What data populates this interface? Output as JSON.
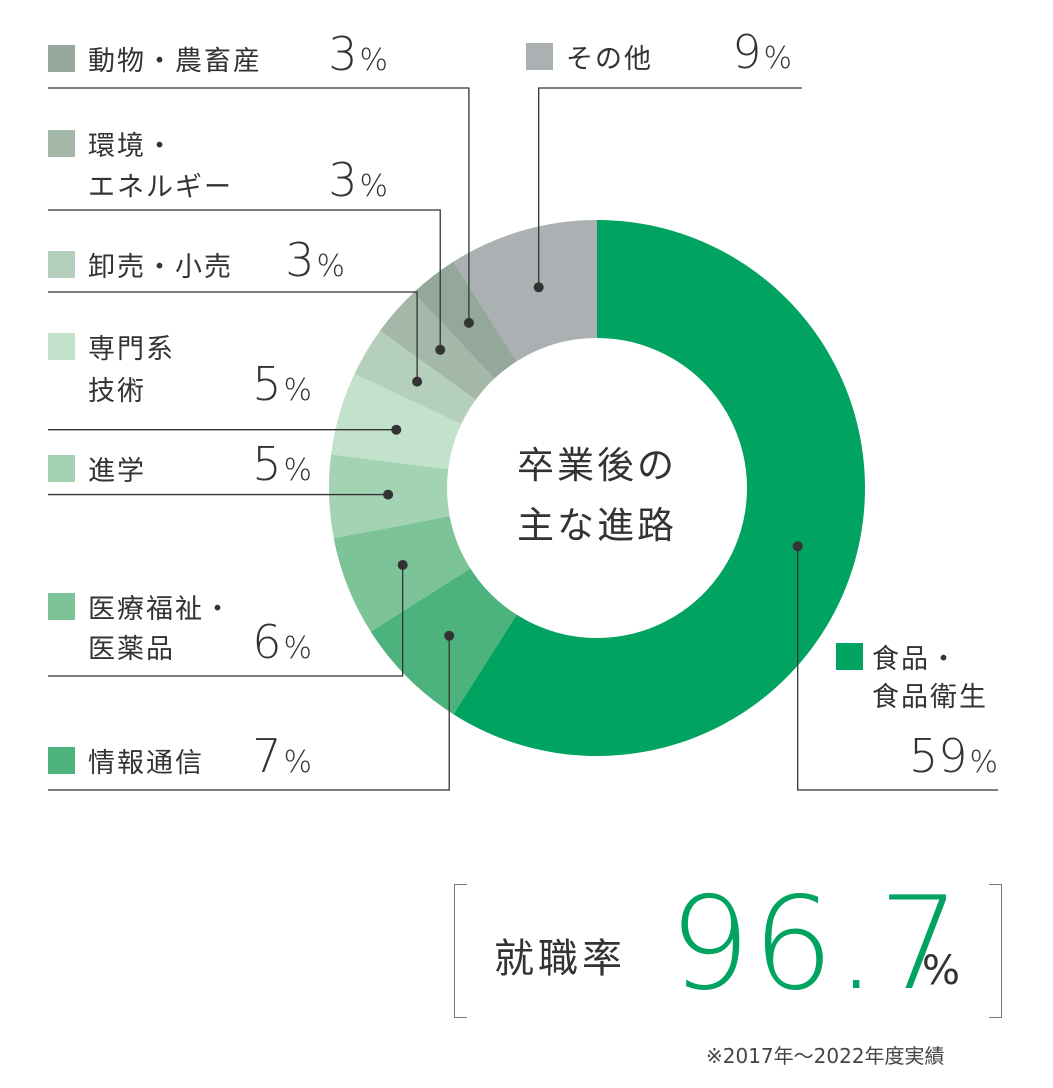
{
  "chart_data": {
    "type": "pie",
    "title": "卒業後の主な進路",
    "title_lines": [
      "卒業後の",
      "主な進路"
    ],
    "unit": "%",
    "slices": [
      {
        "name": "食品・食品衛生",
        "label_lines": [
          "食品・",
          "食品衛生"
        ],
        "value": 59,
        "color": "#00a35f"
      },
      {
        "name": "情報通信",
        "label_lines": [
          "情報通信"
        ],
        "value": 7,
        "color": "#4db37c"
      },
      {
        "name": "医療福祉・医薬品",
        "label_lines": [
          "医療福祉・",
          "医薬品"
        ],
        "value": 6,
        "color": "#7cc497"
      },
      {
        "name": "進学",
        "label_lines": [
          "進学"
        ],
        "value": 5,
        "color": "#a3d3b2"
      },
      {
        "name": "専門系技術",
        "label_lines": [
          "専門系",
          "技術"
        ],
        "value": 5,
        "color": "#c2e2cc"
      },
      {
        "name": "卸売・小売",
        "label_lines": [
          "卸売・小売"
        ],
        "value": 3,
        "color": "#b4cfbb"
      },
      {
        "name": "環境・エネルギー",
        "label_lines": [
          "環境・",
          "エネルギー"
        ],
        "value": 3,
        "color": "#a3b8a8"
      },
      {
        "name": "動物・農畜産",
        "label_lines": [
          "動物・農畜産"
        ],
        "value": 3,
        "color": "#94a79b"
      },
      {
        "name": "その他",
        "label_lines": [
          "その他"
        ],
        "value": 9,
        "color": "#abb0b2"
      }
    ]
  },
  "employment": {
    "label": "就職率",
    "value": "96.7",
    "unit": "%"
  },
  "note": "※2017年～2022年度実績"
}
